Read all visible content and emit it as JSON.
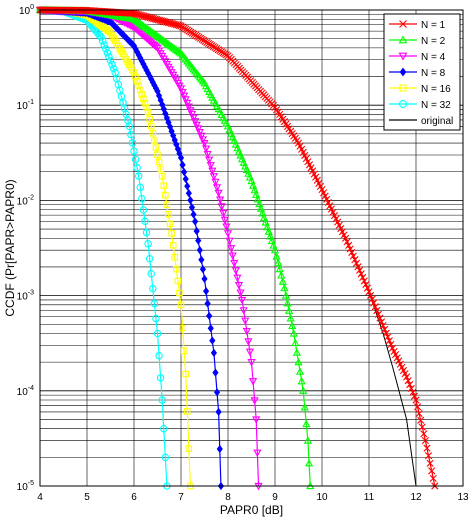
{
  "chart_data": {
    "type": "line",
    "xlabel": "PAPR0 [dB]",
    "ylabel": "CCDF (Pr[PAPR>PAPR0)",
    "xlim": [
      4,
      13
    ],
    "ylim": [
      1e-05,
      1
    ],
    "yscale": "log",
    "grid": true,
    "legend_position": "top-right",
    "x_ticks": [
      "4",
      "5",
      "6",
      "7",
      "8",
      "9",
      "10",
      "11",
      "12",
      "13"
    ],
    "y_ticks": [
      {
        "value": 1,
        "mantissa": "10",
        "exponent": "0"
      },
      {
        "value": 0.1,
        "mantissa": "10",
        "exponent": "-1"
      },
      {
        "value": 0.01,
        "mantissa": "10",
        "exponent": "-2"
      },
      {
        "value": 0.001,
        "mantissa": "10",
        "exponent": "-3"
      },
      {
        "value": 0.0001,
        "mantissa": "10",
        "exponent": "-4"
      },
      {
        "value": 1e-05,
        "mantissa": "10",
        "exponent": "-5"
      }
    ],
    "series": [
      {
        "name": "N =  1",
        "color": "#ff0000",
        "marker": "x",
        "x": [
          4.0,
          5.0,
          6.0,
          7.0,
          8.0,
          9.0,
          9.5,
          10.0,
          10.5,
          11.0,
          11.5,
          11.8,
          12.0,
          12.2,
          12.4
        ],
        "y": [
          1.0,
          0.99,
          0.92,
          0.68,
          0.33,
          0.095,
          0.04,
          0.013,
          0.004,
          0.0011,
          0.00028,
          0.00014,
          8e-05,
          3e-05,
          1e-05
        ]
      },
      {
        "name": "N =  2",
        "color": "#00ff00",
        "marker": "triangle-up",
        "x": [
          4.0,
          5.0,
          6.0,
          7.0,
          7.5,
          8.0,
          8.5,
          9.0,
          9.2,
          9.4,
          9.6,
          9.7,
          9.75
        ],
        "y": [
          1.0,
          0.98,
          0.8,
          0.35,
          0.17,
          0.06,
          0.016,
          0.003,
          0.0012,
          0.0004,
          0.0001,
          3e-05,
          1e-05
        ]
      },
      {
        "name": "N =  4",
        "color": "#ff00ff",
        "marker": "triangle-down",
        "x": [
          4.0,
          5.0,
          5.5,
          6.0,
          6.5,
          7.0,
          7.5,
          7.8,
          8.0,
          8.3,
          8.5,
          8.6,
          8.65
        ],
        "y": [
          1.0,
          0.97,
          0.88,
          0.66,
          0.4,
          0.15,
          0.04,
          0.012,
          0.0045,
          0.0009,
          0.0002,
          5e-05,
          1e-05
        ]
      },
      {
        "name": "N =  8",
        "color": "#0000ff",
        "marker": "diamond",
        "x": [
          4.0,
          5.0,
          5.5,
          6.0,
          6.5,
          7.0,
          7.3,
          7.5,
          7.7,
          7.8,
          7.85
        ],
        "y": [
          1.0,
          0.93,
          0.75,
          0.42,
          0.14,
          0.028,
          0.006,
          0.0015,
          0.00025,
          6e-05,
          1e-05
        ]
      },
      {
        "name": "N = 16",
        "color": "#ffff00",
        "marker": "square",
        "x": [
          4.0,
          4.5,
          5.0,
          5.5,
          6.0,
          6.3,
          6.6,
          6.8,
          7.0,
          7.1,
          7.2
        ],
        "y": [
          1.0,
          0.98,
          0.88,
          0.58,
          0.22,
          0.085,
          0.018,
          0.0045,
          0.0008,
          0.00015,
          1e-05
        ]
      },
      {
        "name": "N = 32",
        "color": "#00ffff",
        "marker": "circle",
        "x": [
          4.0,
          4.5,
          5.0,
          5.3,
          5.6,
          5.9,
          6.1,
          6.3,
          6.5,
          6.6,
          6.7
        ],
        "y": [
          1.0,
          0.97,
          0.78,
          0.52,
          0.22,
          0.06,
          0.018,
          0.0035,
          0.0004,
          8e-05,
          1e-05
        ]
      },
      {
        "name": "original",
        "color": "#000000",
        "marker": "none",
        "x": [
          4.0,
          5.0,
          6.0,
          7.0,
          8.0,
          9.0,
          9.5,
          10.0,
          10.5,
          11.0,
          11.3,
          11.5,
          11.8,
          12.0
        ],
        "y": [
          1.0,
          0.99,
          0.92,
          0.68,
          0.33,
          0.095,
          0.04,
          0.013,
          0.004,
          0.0011,
          0.0004,
          0.00018,
          5e-05,
          1e-05
        ]
      }
    ]
  }
}
